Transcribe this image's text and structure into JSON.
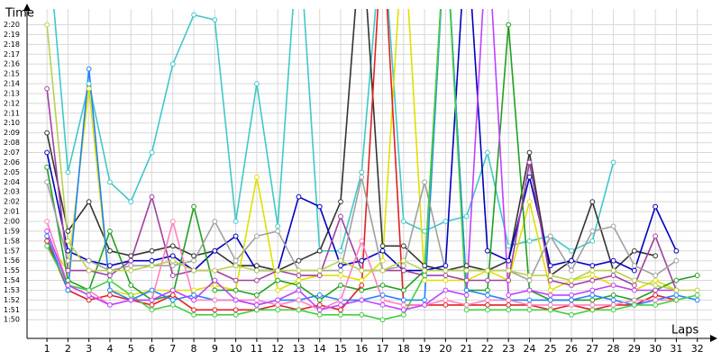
{
  "chart_data": {
    "type": "line",
    "y_label": "Time",
    "x_label": "Laps",
    "grid": true,
    "xlim": [
      0.05,
      32.7
    ],
    "ylim": [
      108.1,
      141.6
    ],
    "xticks": [
      1,
      2,
      3,
      4,
      5,
      6,
      7,
      8,
      9,
      10,
      11,
      12,
      13,
      14,
      15,
      16,
      17,
      18,
      19,
      20,
      21,
      22,
      23,
      24,
      25,
      26,
      27,
      28,
      29,
      30,
      31,
      32
    ],
    "yticks": [
      {
        "value": 110,
        "label": "1:50"
      },
      {
        "value": 111,
        "label": "1:51"
      },
      {
        "value": 112,
        "label": "1:52"
      },
      {
        "value": 113,
        "label": "1:53"
      },
      {
        "value": 114,
        "label": "1:54"
      },
      {
        "value": 115,
        "label": "1:55"
      },
      {
        "value": 116,
        "label": "1:56"
      },
      {
        "value": 117,
        "label": "1:57"
      },
      {
        "value": 118,
        "label": "1:58"
      },
      {
        "value": 119,
        "label": "1:59"
      },
      {
        "value": 120,
        "label": "2:00"
      },
      {
        "value": 121,
        "label": "2:01"
      },
      {
        "value": 122,
        "label": "2:02"
      },
      {
        "value": 123,
        "label": "2:03"
      },
      {
        "value": 124,
        "label": "2:04"
      },
      {
        "value": 125,
        "label": "2:05"
      },
      {
        "value": 126,
        "label": "2:06"
      },
      {
        "value": 127,
        "label": "2:07"
      },
      {
        "value": 128,
        "label": "2:08"
      },
      {
        "value": 129,
        "label": "2:09"
      },
      {
        "value": 130,
        "label": "2:10"
      },
      {
        "value": 131,
        "label": "2:11"
      },
      {
        "value": 132,
        "label": "2:12"
      },
      {
        "value": 133,
        "label": "2:13"
      },
      {
        "value": 134,
        "label": "2:14"
      },
      {
        "value": 135,
        "label": "2:15"
      },
      {
        "value": 136,
        "label": "2:16"
      },
      {
        "value": 137,
        "label": "2:17"
      },
      {
        "value": 138,
        "label": "2:18"
      },
      {
        "value": 139,
        "label": "2:19"
      },
      {
        "value": 140,
        "label": "2:20"
      }
    ],
    "x": [
      1,
      2,
      3,
      4,
      5,
      6,
      7,
      8,
      9,
      10,
      11,
      12,
      13,
      14,
      15,
      16,
      17,
      18,
      19,
      20,
      21,
      22,
      23,
      24,
      25,
      26,
      27,
      28,
      29,
      30,
      31,
      32
    ],
    "series": [
      {
        "color": "#40c8c8",
        "values": [
          150,
          125,
          134,
          124,
          122,
          127,
          136,
          141,
          140.5,
          120,
          134,
          119.5,
          150,
          117,
          117,
          125,
          150,
          120,
          119,
          120,
          120.5,
          127,
          117.5,
          118,
          118.5,
          117,
          118,
          126,
          null,
          null,
          null,
          null
        ]
      },
      {
        "color": "#333333",
        "values": [
          129,
          119,
          122,
          117,
          116.5,
          117,
          117.5,
          116.5,
          117,
          115.5,
          115.5,
          115,
          116,
          117,
          122,
          150,
          117.5,
          117.5,
          115.5,
          115,
          115.5,
          115,
          116,
          127,
          114.5,
          116,
          122,
          115,
          117,
          116.5,
          null,
          null
        ]
      },
      {
        "color": "#0000c0",
        "values": [
          127,
          117,
          116,
          115.5,
          116,
          116,
          116.5,
          115,
          117,
          118.5,
          115,
          115,
          122.5,
          121.5,
          115.5,
          116,
          117,
          115,
          115,
          115.5,
          150,
          117,
          116,
          124.5,
          115.5,
          116,
          115.5,
          116,
          115,
          121.5,
          117,
          null
        ]
      },
      {
        "color": "#e0e000",
        "values": [
          118,
          115,
          133.5,
          113,
          112.5,
          113,
          113,
          113,
          113.5,
          113,
          124.5,
          113,
          114,
          114.5,
          114.5,
          114,
          116,
          150,
          114,
          114,
          114,
          115,
          114,
          122,
          113,
          114,
          114.5,
          113.5,
          113,
          114,
          113,
          null
        ]
      },
      {
        "color": "#20a020",
        "values": [
          125.5,
          114,
          113,
          119,
          113.5,
          112,
          112.5,
          121.5,
          113,
          113,
          112.5,
          114,
          113.5,
          112,
          113.5,
          113,
          113.5,
          113,
          115,
          150,
          113,
          113,
          140,
          113,
          112,
          112,
          112,
          112.5,
          112,
          113,
          114,
          114.5
        ]
      },
      {
        "color": "#e02020",
        "values": [
          118,
          113,
          112,
          112.5,
          112,
          111.5,
          112.5,
          111,
          111,
          111,
          111,
          111.5,
          111,
          111.5,
          111,
          113.5,
          150,
          111.5,
          111.5,
          111.5,
          111.5,
          111.5,
          111.5,
          111.5,
          111,
          111.5,
          111,
          111.5,
          111.5,
          112.5,
          112,
          null
        ]
      },
      {
        "color": "#2080ff",
        "values": [
          118.5,
          113,
          135.5,
          113,
          112,
          113,
          112,
          112.5,
          112,
          112,
          111.5,
          112,
          112,
          112.5,
          112,
          112,
          112.5,
          112,
          112,
          150,
          113,
          112.5,
          112,
          112,
          112,
          112,
          112.5,
          112,
          111.5,
          112,
          112.5,
          112
        ]
      },
      {
        "color": "#a040a0",
        "values": [
          133.5,
          115,
          115,
          114.5,
          116,
          122.5,
          114.5,
          115,
          115,
          114,
          114,
          115,
          114.5,
          114.5,
          120.5,
          115,
          115,
          115,
          114.5,
          114.5,
          114,
          114,
          114,
          126,
          114,
          113.5,
          114,
          114.5,
          113.5,
          118.5,
          113,
          null
        ]
      },
      {
        "color": "#a0a0a0",
        "values": [
          124,
          116,
          116,
          115,
          115.5,
          115.5,
          115.5,
          116,
          120,
          116,
          118.5,
          119,
          115,
          115,
          115,
          124.5,
          115,
          115.5,
          124,
          115,
          115,
          115,
          115,
          114,
          118.5,
          115,
          119,
          119.5,
          115.5,
          114.5,
          116,
          null
        ]
      },
      {
        "color": "#ff80c0",
        "values": [
          120,
          113.5,
          113,
          111.5,
          112,
          112,
          120,
          112,
          112,
          112,
          112,
          111.5,
          112,
          111,
          112,
          118,
          112,
          111.5,
          111.5,
          112,
          111.5,
          112,
          112,
          111.5,
          111.5,
          111.5,
          111.5,
          111.5,
          112,
          112,
          112,
          null
        ]
      },
      {
        "color": "#40d040",
        "values": [
          117.5,
          113.5,
          113,
          114,
          112.5,
          111,
          111.5,
          110.5,
          110.5,
          110.5,
          111,
          111,
          111,
          110.5,
          110.5,
          110.5,
          110,
          110.5,
          114.5,
          150,
          111,
          111,
          111,
          111,
          111,
          110.5,
          111,
          111,
          111.5,
          111.5,
          112,
          112.5
        ]
      },
      {
        "color": "#c040ff",
        "values": [
          119,
          113.5,
          112.5,
          111.5,
          112,
          112,
          113,
          112,
          114,
          112,
          111.5,
          112,
          113,
          111,
          111.5,
          112,
          111.5,
          111,
          111.5,
          113,
          112.5,
          150,
          112.5,
          113,
          112.5,
          112.5,
          113,
          113.5,
          113,
          113,
          113,
          null
        ]
      },
      {
        "color": "#b8d050",
        "values": [
          140,
          118,
          115,
          115,
          115,
          115.5,
          116,
          115,
          115,
          115.5,
          115,
          115,
          115,
          115,
          116,
          115,
          115,
          116,
          115,
          115,
          115,
          115,
          115,
          114.5,
          114.5,
          114,
          115,
          115,
          114,
          113.5,
          113,
          113
        ]
      }
    ]
  }
}
